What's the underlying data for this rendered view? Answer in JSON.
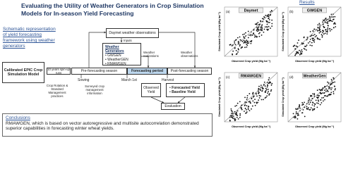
{
  "header": {
    "title": "Evaluating the Utility of Weather Generators in Crop Simulation Models for In-season Yield Forecasting"
  },
  "schematic_caption": "Schematic representation of yield forecasting framework using weather generators",
  "diagram": {
    "model": "Calibrated EPIC Crop Simulation Model",
    "spin_up": "10 years spin-up runs",
    "pre_season": "Pre-forecasting season",
    "forecast_period": "Forecasting period",
    "post_season": "Post-forecasting season",
    "sowing": "Sowing",
    "march": "March 1st",
    "harvest": "Harvest",
    "daymet": "Daymet weather observations",
    "inputs": "Inputs",
    "generators_title": "Weather Generators",
    "generators": [
      "GWGEN",
      "WeatherGEN",
      "RMAWGEN"
    ],
    "realizations": "Weather realizations",
    "observations": "Weather observations",
    "crop_rotation": "Crop Rotation & Standard Management practices",
    "surveyed": "Surveyed crop management information",
    "observed_yield": "Observed Yield",
    "outputs": [
      "Forecasted Yield",
      "Baseline Yield"
    ],
    "evaluation": "Evaluation"
  },
  "conclusions": {
    "heading": "Conclusions",
    "text": "RMAWGEN, which is based on vector autoregressive and multisite autocorrelation demonstrated superior capabilities in forecasting winter wheat yields."
  },
  "results": {
    "heading": "Results",
    "x_label": "Observed Crop yield (Mg ha⁻¹)",
    "y_label": "Simulated Crop yield (Mg ha⁻¹)",
    "panels": [
      {
        "label": "(a)",
        "name": "Daymet"
      },
      {
        "label": "(b)",
        "name": "GWGEN"
      },
      {
        "label": "(c)",
        "name": "RMAWGEN"
      },
      {
        "label": "(d)",
        "name": "WeatherGen"
      }
    ]
  }
}
